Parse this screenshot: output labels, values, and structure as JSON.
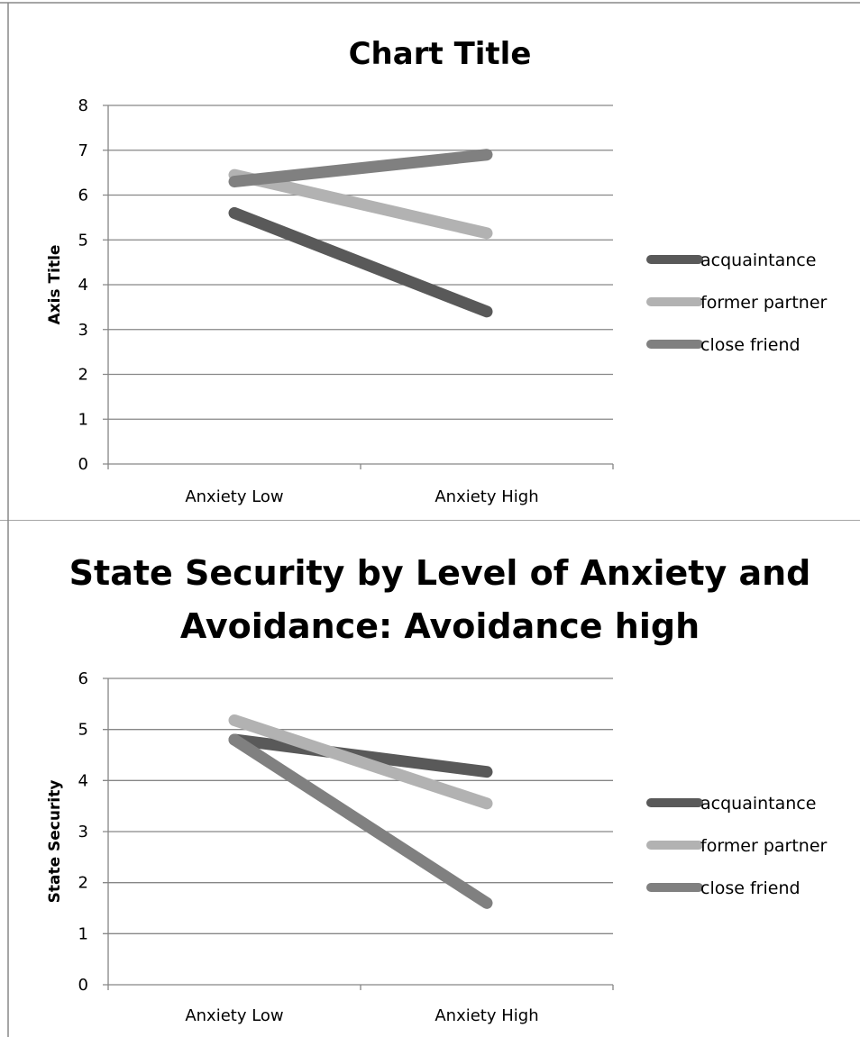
{
  "chart_data": [
    {
      "type": "line",
      "title": "Chart Title",
      "xlabel": "",
      "ylabel": "Axis Title",
      "categories": [
        "Anxiety Low",
        "Anxiety High"
      ],
      "ylim": [
        0,
        8
      ],
      "yticks": [
        "0",
        "1",
        "2",
        "3",
        "4",
        "5",
        "6",
        "7",
        "8"
      ],
      "grid": true,
      "legend_position": "right",
      "series": [
        {
          "name": "acquaintance",
          "values": [
            5.6,
            3.4
          ],
          "color": "#595959"
        },
        {
          "name": "former partner",
          "values": [
            6.45,
            5.15
          ],
          "color": "#b2b2b2"
        },
        {
          "name": "close friend",
          "values": [
            6.3,
            6.9
          ],
          "color": "#808080"
        }
      ]
    },
    {
      "type": "line",
      "title": "State Security by Level of Anxiety and Avoidance: Avoidance high",
      "title_lines": [
        "State Security by Level of Anxiety and",
        "Avoidance: Avoidance high"
      ],
      "xlabel": "",
      "ylabel": "State Security",
      "categories": [
        "Anxiety Low",
        "Anxiety High"
      ],
      "ylim": [
        0,
        6
      ],
      "yticks": [
        "0",
        "1",
        "2",
        "3",
        "4",
        "5",
        "6"
      ],
      "grid": true,
      "legend_position": "right",
      "series": [
        {
          "name": "acquaintance",
          "values": [
            4.8,
            4.17
          ],
          "color": "#595959"
        },
        {
          "name": "former partner",
          "values": [
            5.18,
            3.55
          ],
          "color": "#b2b2b2"
        },
        {
          "name": "close friend",
          "values": [
            4.8,
            1.6
          ],
          "color": "#808080"
        }
      ]
    }
  ]
}
